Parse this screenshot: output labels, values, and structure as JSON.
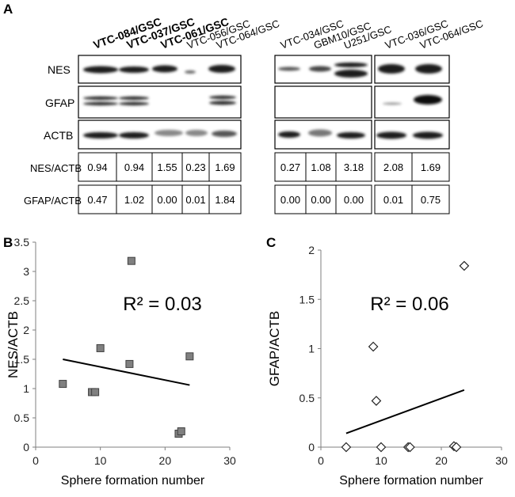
{
  "panel_a": {
    "label": "A",
    "lanes_group1": [
      {
        "name": "VTC-084/GSC",
        "bold": true
      },
      {
        "name": "VTC-037/GSC",
        "bold": true
      },
      {
        "name": "VTC-061/GSC",
        "bold": true
      },
      {
        "name": "VTC-056/GSC",
        "bold": false
      },
      {
        "name": "VTC-064/GSC",
        "bold": false
      }
    ],
    "lanes_group2": [
      {
        "name": "VTC-034/GSC",
        "bold": false
      },
      {
        "name": "GBM10/GSC",
        "bold": false
      },
      {
        "name": "U251/GSC",
        "bold": false
      }
    ],
    "lanes_group3": [
      {
        "name": "VTC-036/GSC",
        "bold": false
      },
      {
        "name": "VTC-064/GSC",
        "bold": false
      }
    ],
    "blot_labels": [
      "NES",
      "GFAP",
      "ACTB"
    ],
    "ratio_labels": [
      "NES/ACTB",
      "GFAP/ACTB"
    ],
    "nes_actb": {
      "group1": [
        "0.94",
        "0.94",
        "1.55",
        "0.23",
        "1.69"
      ],
      "group2": [
        "0.27",
        "1.08",
        "3.18"
      ],
      "group3": [
        "2.08",
        "1.69"
      ]
    },
    "gfap_actb": {
      "group1": [
        "0.47",
        "1.02",
        "0.00",
        "0.01",
        "1.84"
      ],
      "group2": [
        "0.00",
        "0.00",
        "0.00"
      ],
      "group3": [
        "0.01",
        "0.75"
      ]
    }
  },
  "chart_data": [
    {
      "panel": "B",
      "type": "scatter",
      "title": "",
      "xlabel": "Sphere formation number",
      "ylabel": "NES/ACTB",
      "xlim": [
        0,
        30
      ],
      "ylim": [
        0,
        3.5
      ],
      "xticks": [
        "0",
        "10",
        "20",
        "30"
      ],
      "yticks": [
        "0",
        "0.5",
        "1",
        "1.5",
        "2",
        "2.5",
        "3",
        "3.5"
      ],
      "marker": "square",
      "points": [
        {
          "x": 4.2,
          "y": 1.08
        },
        {
          "x": 8.7,
          "y": 0.94
        },
        {
          "x": 9.2,
          "y": 0.94
        },
        {
          "x": 10.0,
          "y": 1.69
        },
        {
          "x": 14.5,
          "y": 1.42
        },
        {
          "x": 14.8,
          "y": 3.18
        },
        {
          "x": 22.1,
          "y": 0.23
        },
        {
          "x": 22.5,
          "y": 0.27
        },
        {
          "x": 23.8,
          "y": 1.55
        }
      ],
      "trendline": {
        "x": [
          4.2,
          23.8
        ],
        "y": [
          1.5,
          1.06
        ]
      },
      "annotation": "R² = 0.03"
    },
    {
      "panel": "C",
      "type": "scatter",
      "title": "",
      "xlabel": "Sphere formation number",
      "ylabel": "GFAP/ACTB",
      "xlim": [
        0,
        30
      ],
      "ylim": [
        0,
        2
      ],
      "xticks": [
        "0",
        "10",
        "20",
        "30"
      ],
      "yticks": [
        "0",
        "0.5",
        "1",
        "1.5",
        "2"
      ],
      "marker": "diamond",
      "points": [
        {
          "x": 4.2,
          "y": 0.0
        },
        {
          "x": 8.7,
          "y": 1.02
        },
        {
          "x": 9.2,
          "y": 0.47
        },
        {
          "x": 10.0,
          "y": 0.0
        },
        {
          "x": 14.5,
          "y": 0.0
        },
        {
          "x": 14.8,
          "y": 0.0
        },
        {
          "x": 22.1,
          "y": 0.01
        },
        {
          "x": 22.5,
          "y": 0.0
        },
        {
          "x": 23.8,
          "y": 1.84
        }
      ],
      "trendline": {
        "x": [
          4.2,
          23.8
        ],
        "y": [
          0.14,
          0.58
        ]
      },
      "annotation": "R² = 0.06"
    }
  ]
}
